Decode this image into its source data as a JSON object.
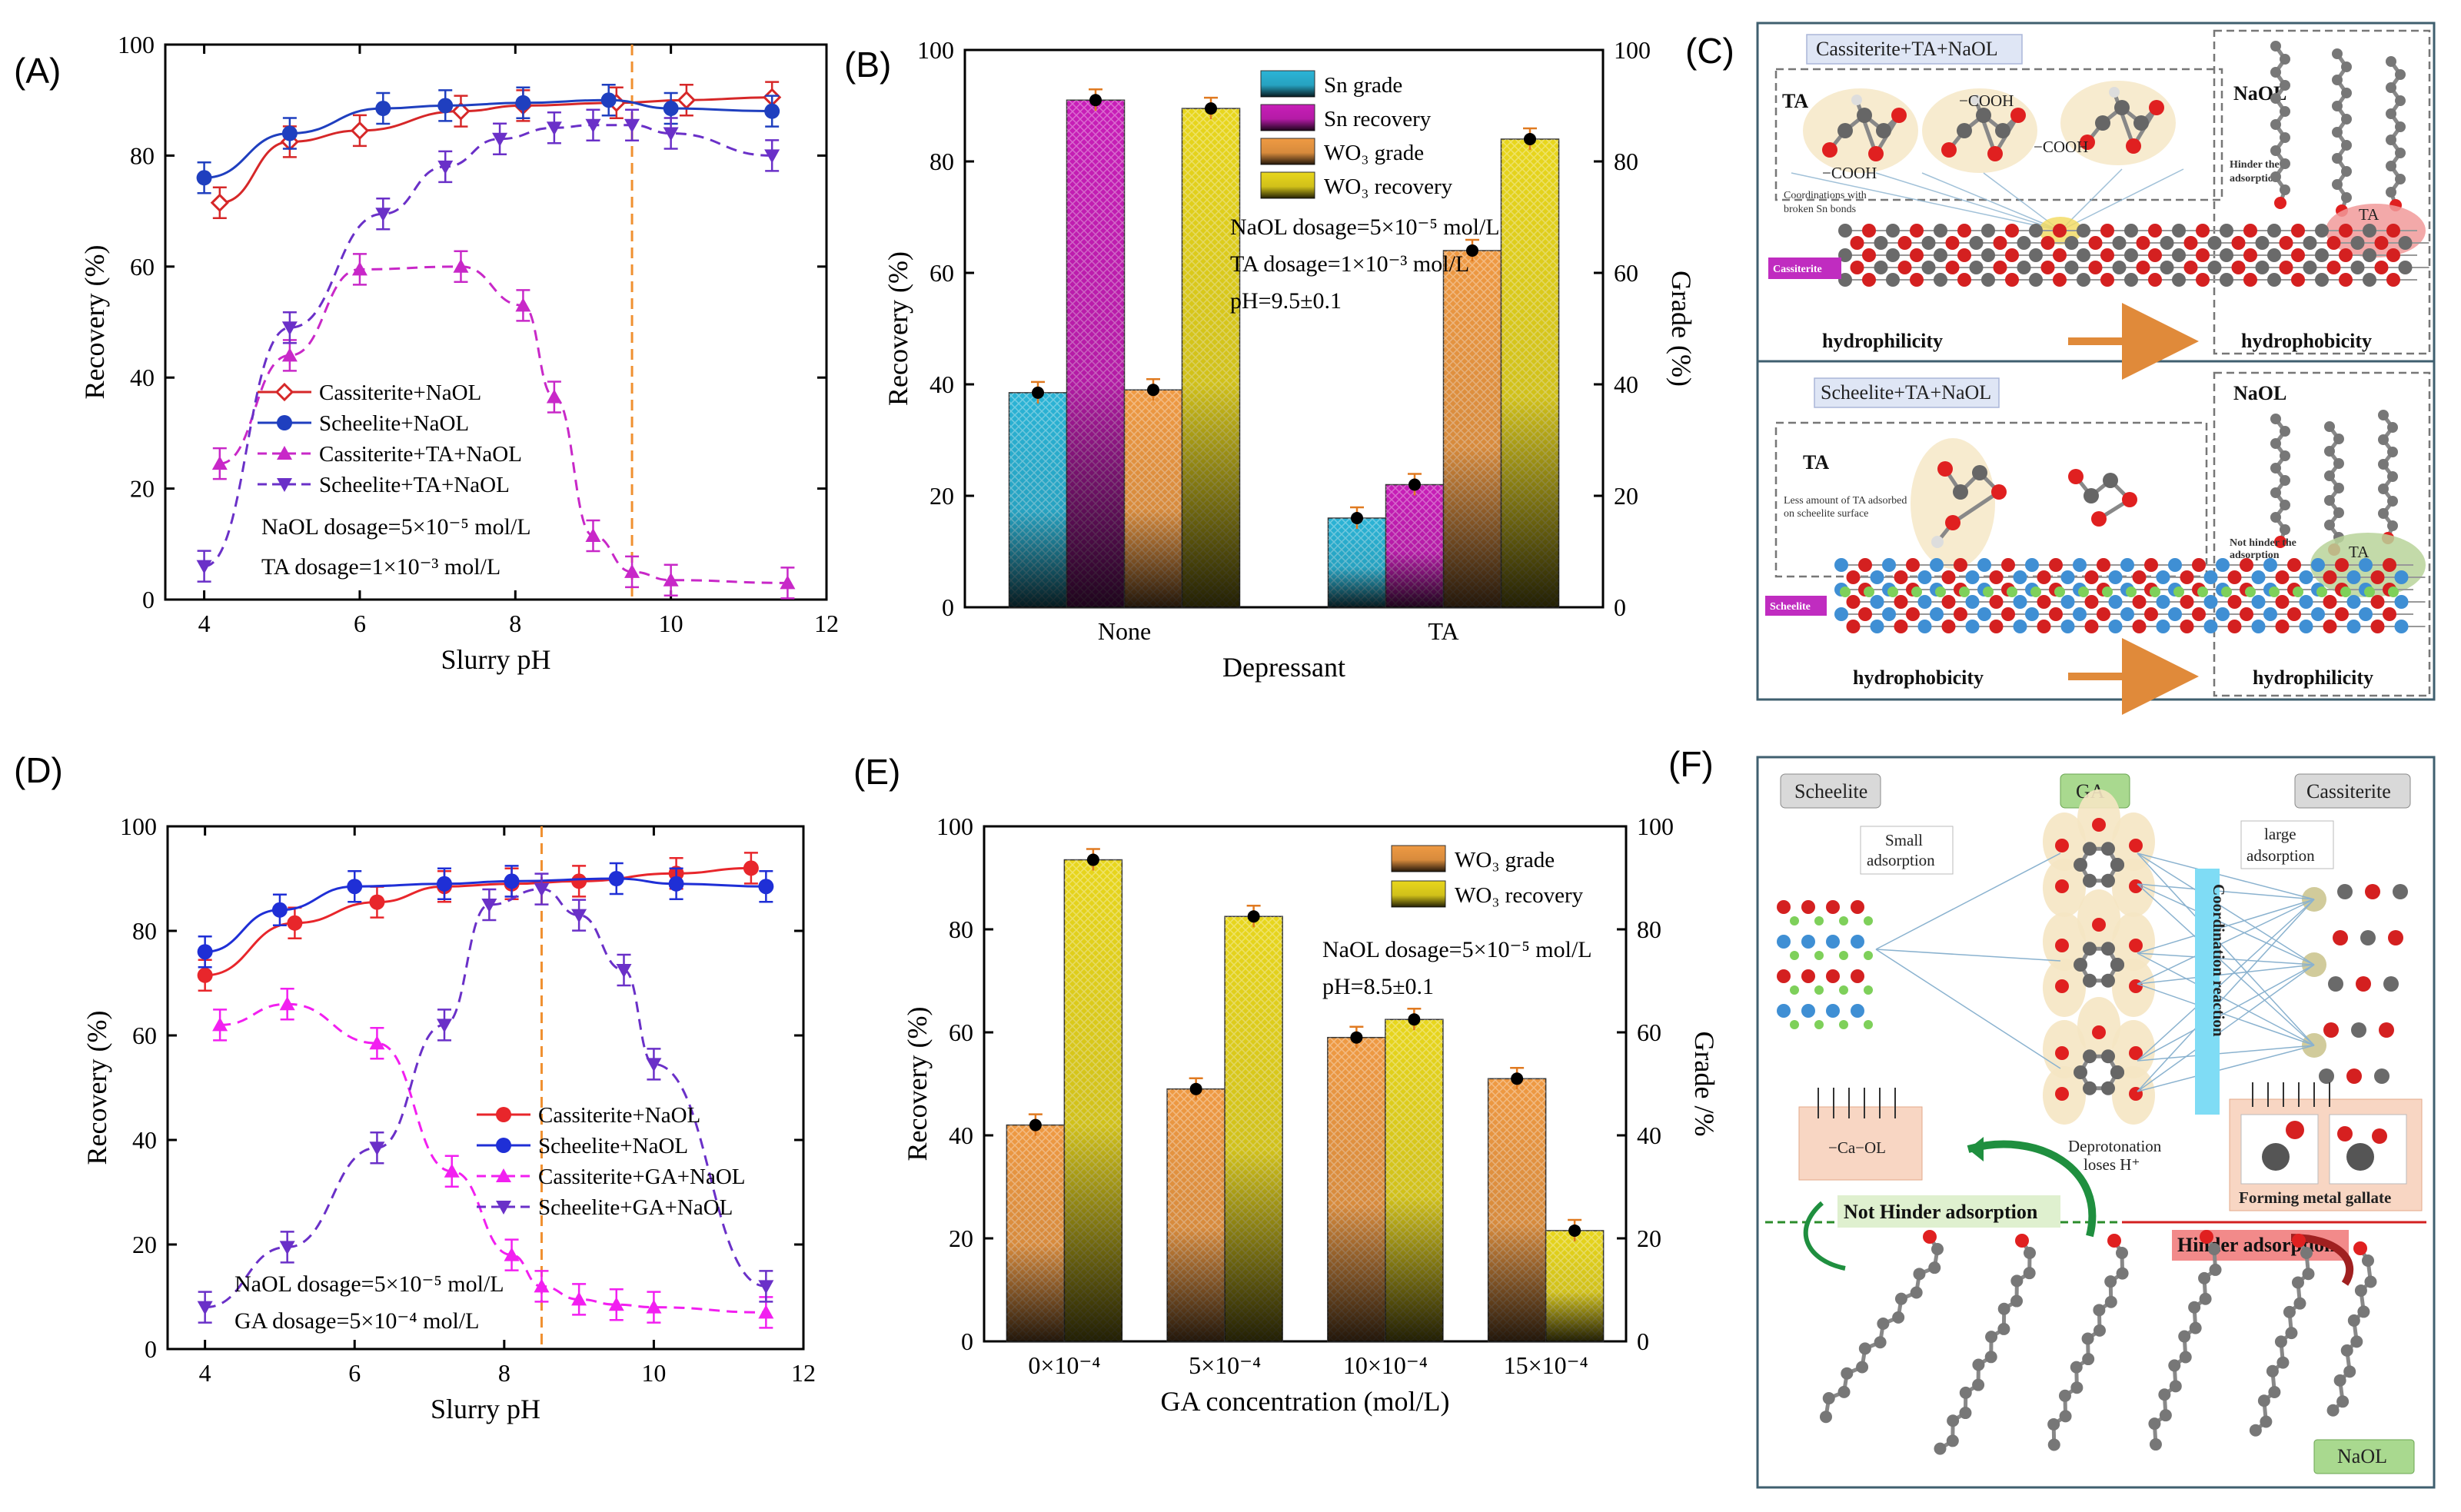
{
  "panel_labels": {
    "a": "(A)",
    "b": "(B)",
    "c": "(C)",
    "d": "(D)",
    "e": "(E)",
    "f": "(F)"
  },
  "chart_data": [
    {
      "id": "A",
      "type": "line",
      "xlabel": "Slurry pH",
      "ylabel": "Recovery (%)",
      "xlim": [
        3.5,
        12
      ],
      "ylim": [
        0,
        100
      ],
      "xticks": [
        4,
        6,
        8,
        10,
        12
      ],
      "yticks": [
        0,
        20,
        40,
        60,
        80,
        100
      ],
      "vline": 9.5,
      "notes": [
        "NaOL dosage=5×10⁻⁵ mol/L",
        "TA dosage=1×10⁻³ mol/L"
      ],
      "series": [
        {
          "name": "Cassiterite+NaOL",
          "color": "#d62728",
          "dash": false,
          "marker": "diamond",
          "x": [
            4.2,
            5.1,
            6.0,
            7.3,
            8.1,
            9.3,
            10.2,
            11.3
          ],
          "y": [
            71.5,
            82.5,
            84.5,
            88,
            89,
            89.5,
            90,
            90.5
          ]
        },
        {
          "name": "Scheelite+NaOL",
          "color": "#1f3fbf",
          "dash": false,
          "marker": "circle",
          "x": [
            4.0,
            5.1,
            6.3,
            7.1,
            8.1,
            9.2,
            10.0,
            11.3
          ],
          "y": [
            76,
            84,
            88.5,
            89,
            89.5,
            90,
            88.5,
            88
          ]
        },
        {
          "name": "Cassiterite+TA+NaOL",
          "color": "#c828c8",
          "dash": true,
          "marker": "triangle-up",
          "x": [
            4.2,
            5.1,
            6.0,
            7.3,
            8.1,
            8.5,
            9.0,
            9.5,
            10.0,
            11.5
          ],
          "y": [
            24.5,
            44,
            59.5,
            60,
            53,
            36.5,
            11.5,
            5,
            3.5,
            3
          ]
        },
        {
          "name": "Scheelite+TA+NaOL",
          "color": "#6a30c8",
          "dash": true,
          "marker": "triangle-down",
          "x": [
            4.0,
            5.1,
            6.3,
            7.1,
            7.8,
            8.5,
            9.0,
            9.5,
            10.0,
            11.3
          ],
          "y": [
            6,
            49,
            69.5,
            78,
            83,
            85,
            85.5,
            85.5,
            84,
            80
          ]
        }
      ]
    },
    {
      "id": "B",
      "type": "bar",
      "xlabel": "Depressant",
      "ylabel": "Recovery (%)",
      "y2label": "Grade (%)",
      "ylim": [
        0,
        100
      ],
      "y2lim": [
        0,
        100
      ],
      "yticks": [
        0,
        20,
        40,
        60,
        80,
        100
      ],
      "categories": [
        "None",
        "TA"
      ],
      "notes": [
        "NaOL dosage=5×10⁻⁵ mol/L",
        "TA dosage=1×10⁻³ mol/L",
        "pH=9.5±0.1"
      ],
      "series": [
        {
          "name": "Sn grade",
          "color": "#2bb4d6",
          "values": [
            38.5,
            16
          ]
        },
        {
          "name": "Sn recovery",
          "color": "#c81eb8",
          "values": [
            91,
            22
          ]
        },
        {
          "name": "WO₃ grade",
          "color": "#ef9a43",
          "values": [
            39,
            64
          ]
        },
        {
          "name": "WO₃ recovery",
          "color": "#e8d61c",
          "values": [
            89.5,
            84
          ]
        }
      ]
    },
    {
      "id": "D",
      "type": "line",
      "xlabel": "Slurry pH",
      "ylabel": "Recovery (%)",
      "xlim": [
        3.5,
        12
      ],
      "ylim": [
        0,
        100
      ],
      "xticks": [
        4,
        6,
        8,
        10,
        12
      ],
      "yticks": [
        0,
        20,
        40,
        60,
        80,
        100
      ],
      "vline": 8.5,
      "notes": [
        "NaOL dosage=5×10⁻⁵ mol/L",
        "GA dosage=5×10⁻⁴ mol/L"
      ],
      "series": [
        {
          "name": "Cassiterite+NaOL",
          "color": "#e8262b",
          "dash": false,
          "marker": "circle",
          "x": [
            4.0,
            5.2,
            6.3,
            7.2,
            8.1,
            9.0,
            10.3,
            11.3
          ],
          "y": [
            71.5,
            81.5,
            85.5,
            88.5,
            89,
            89.5,
            91,
            92
          ]
        },
        {
          "name": "Scheelite+NaOL",
          "color": "#1f2fd6",
          "dash": false,
          "marker": "circle",
          "x": [
            4.0,
            5.0,
            6.0,
            7.2,
            8.1,
            9.5,
            10.3,
            11.5
          ],
          "y": [
            76,
            84,
            88.5,
            89,
            89.5,
            90,
            89,
            88.5
          ]
        },
        {
          "name": "Cassiterite+GA+NaOL",
          "color": "#f21ff0",
          "dash": true,
          "marker": "triangle-up",
          "x": [
            4.2,
            5.1,
            6.3,
            7.3,
            8.1,
            8.5,
            9.0,
            9.5,
            10.0,
            11.5
          ],
          "y": [
            62,
            66,
            58.5,
            34,
            18,
            12,
            9.5,
            8.5,
            8,
            7
          ]
        },
        {
          "name": "Scheelite+GA+NaOL",
          "color": "#6a30c8",
          "dash": true,
          "marker": "triangle-down",
          "x": [
            4.0,
            5.1,
            6.3,
            7.2,
            7.8,
            8.5,
            9.0,
            9.6,
            10.0,
            11.5
          ],
          "y": [
            8,
            19.5,
            38.5,
            62,
            85,
            88,
            83,
            72.5,
            54.5,
            12
          ]
        }
      ]
    },
    {
      "id": "E",
      "type": "bar",
      "xlabel": "GA concentration (mol/L)",
      "ylabel": "Recovery (%)",
      "y2label": "Grade /%",
      "ylim": [
        0,
        100
      ],
      "y2lim": [
        0,
        100
      ],
      "yticks": [
        0,
        20,
        40,
        60,
        80,
        100
      ],
      "categories": [
        "0×10⁻⁴",
        "5×10⁻⁴",
        "10×10⁻⁴",
        "15×10⁻⁴"
      ],
      "notes": [
        "NaOL dosage=5×10⁻⁵ mol/L",
        "pH=8.5±0.1"
      ],
      "series": [
        {
          "name": "WO₃ grade",
          "color": "#ef9a43",
          "values": [
            42,
            49,
            59,
            51
          ]
        },
        {
          "name": "WO₃ recovery",
          "color": "#e8d61c",
          "values": [
            93.5,
            82.5,
            62.5,
            21.5
          ]
        }
      ]
    }
  ],
  "schematic_c": {
    "top_title": "Cassiterite+TA+NaOL",
    "ta": "TA",
    "cooh_1": "−COOH",
    "cooh_2": "−COOH",
    "cooh_3": "−COOH",
    "coord_note_1": "Coordinations with",
    "coord_note_2": "broken Sn bonds",
    "naol": "NaOL",
    "hinder_1": "Hinder the",
    "hinder_2": "adsorption",
    "ta_bubble": "TA",
    "surface_tag": "Cassiterite",
    "left_state": "hydrophilicity",
    "right_state": "hydrophobicity",
    "bottom_title": "Scheelite+TA+NaOL",
    "ta2": "TA",
    "less_1": "Less amount of TA adsorbed",
    "less_2": "on scheelite surface",
    "naol2": "NaOL",
    "nothinder_1": "Not hinder the",
    "nothinder_2": "adsorption",
    "ta_bubble2": "TA",
    "surface_tag2": "Scheelite",
    "left_state2": "hydrophobicity",
    "right_state2": "hydrophilicity"
  },
  "schematic_f": {
    "scheelite": "Scheelite",
    "ga": "GA",
    "cassiterite": "Cassiterite",
    "small_1": "Small",
    "small_2": "adsorption",
    "large_1": "large",
    "large_2": "adsorption",
    "coordination": "Coordination reaction",
    "ca_ol": "−Ca−OL",
    "deprot_1": "Deprotonation",
    "deprot_2": "loses H⁺",
    "forming": "Forming metal gallate",
    "not_hinder": "Not Hinder adsorption",
    "hinder": "Hinder adsorption",
    "naol": "NaOL"
  }
}
